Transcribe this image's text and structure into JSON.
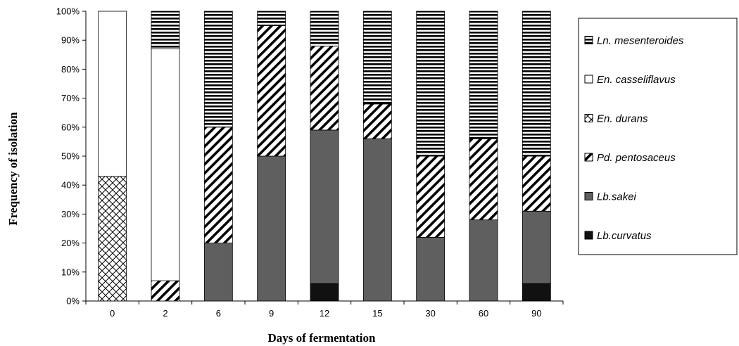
{
  "chart_data": {
    "type": "bar",
    "stacked": true,
    "percent": true,
    "title": "",
    "xlabel": "Days of fermentation",
    "ylabel": "Frequency of isolation",
    "ylim": [
      0,
      100
    ],
    "yticks": [
      "0%",
      "10%",
      "20%",
      "30%",
      "40%",
      "50%",
      "60%",
      "70%",
      "80%",
      "90%",
      "100%"
    ],
    "categories": [
      "0",
      "2",
      "6",
      "9",
      "12",
      "15",
      "30",
      "60",
      "90"
    ],
    "legend_position": "right",
    "series": [
      {
        "name": "Lb.curvatus",
        "pattern": "solid-black",
        "values": [
          0,
          0,
          0,
          0,
          6,
          0,
          0,
          0,
          6
        ]
      },
      {
        "name": "Lb.sakei",
        "pattern": "solid-gray",
        "values": [
          0,
          0,
          20,
          50,
          53,
          56,
          22,
          28,
          25
        ]
      },
      {
        "name": "Pd. pentosaceus",
        "pattern": "diagonal",
        "values": [
          0,
          7,
          40,
          45,
          29,
          12,
          28,
          28,
          19
        ]
      },
      {
        "name": "En. durans",
        "pattern": "crosshatch",
        "values": [
          43,
          0,
          0,
          0,
          0,
          0,
          0,
          0,
          0
        ]
      },
      {
        "name": "En. casseliflavus",
        "pattern": "white",
        "values": [
          57,
          80,
          0,
          0,
          0,
          0,
          0,
          0,
          0
        ]
      },
      {
        "name": "Ln. mesenteroides",
        "pattern": "horizontal",
        "values": [
          0,
          13,
          40,
          5,
          12,
          32,
          50,
          44,
          50
        ]
      }
    ],
    "legend_order": [
      "Ln. mesenteroides",
      "En. casseliflavus",
      "En. durans",
      "Pd. pentosaceus",
      "Lb.sakei",
      "Lb.curvatus"
    ]
  }
}
